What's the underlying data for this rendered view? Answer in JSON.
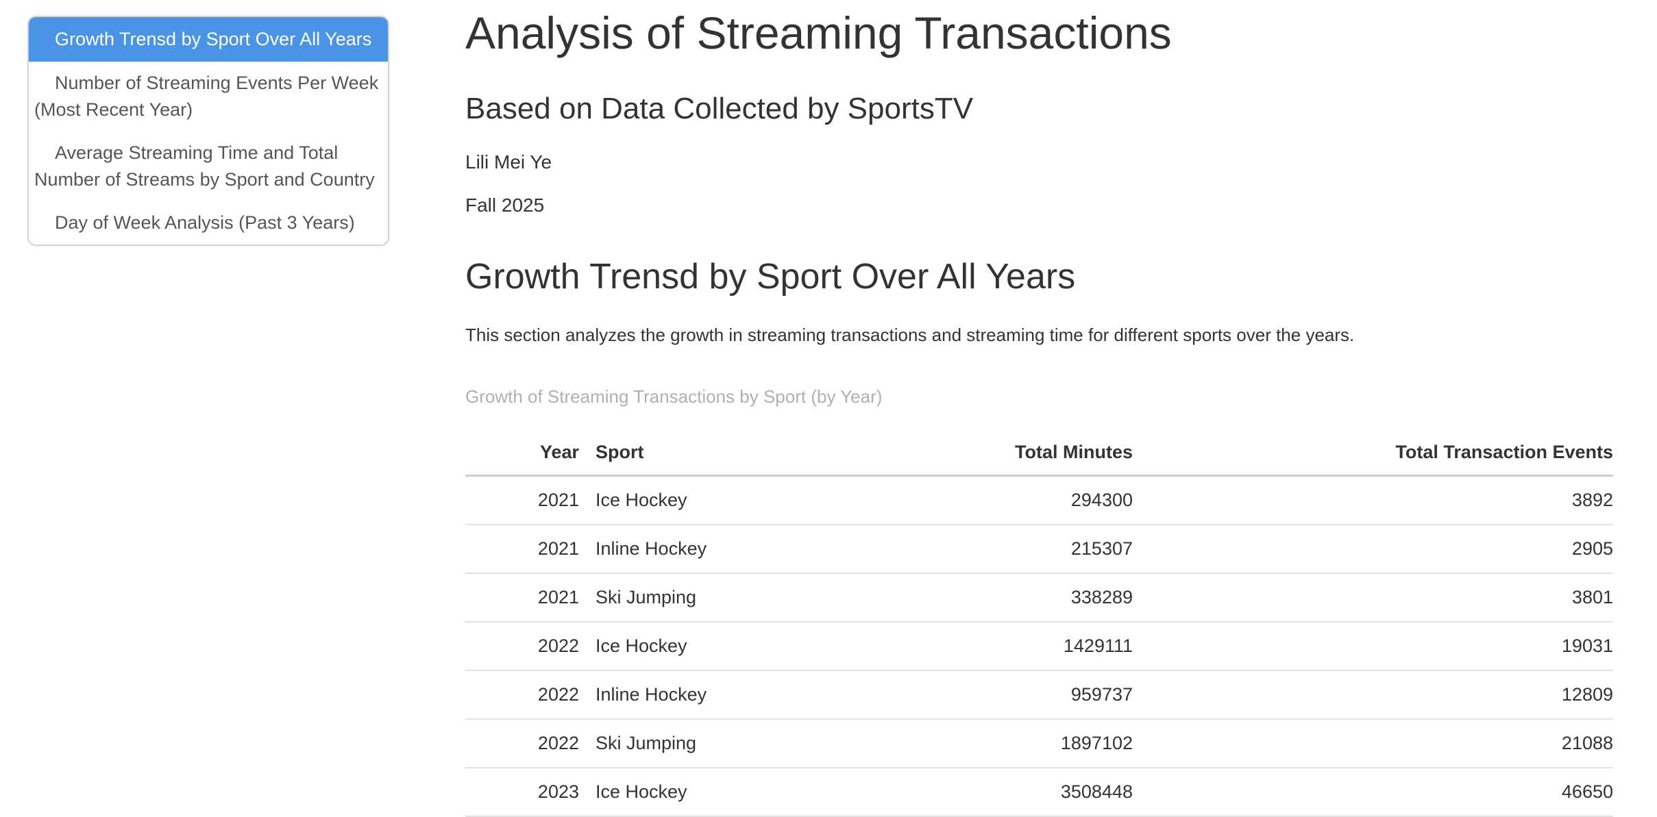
{
  "colors": {
    "toc_active_bg": "#4a94e8",
    "toc_active_text": "#ffffff",
    "toc_text": "#555555",
    "body_text": "#333333",
    "caption_text": "#b0b0b0",
    "row_border": "#e2e2e2"
  },
  "toc": {
    "items": [
      {
        "label": "Growth Trensd by Sport Over All Years",
        "active": true
      },
      {
        "label": "Number of Streaming Events Per Week (Most Recent Year)",
        "active": false
      },
      {
        "label": "Average Streaming Time and Total Number of Streams by Sport and Country",
        "active": false
      },
      {
        "label": "Day of Week Analysis (Past 3 Years)",
        "active": false
      }
    ]
  },
  "header": {
    "title": "Analysis of Streaming Transactions",
    "subtitle": "Based on Data Collected by SportsTV",
    "author": "Lili Mei Ye",
    "date": "Fall 2025"
  },
  "section": {
    "heading": "Growth Trensd by Sport Over All Years",
    "description": "This section analyzes the growth in streaming transactions and streaming time for different sports over the years."
  },
  "table": {
    "caption": "Growth of Streaming Transactions by Sport (by Year)",
    "columns": [
      "Year",
      "Sport",
      "Total Minutes",
      "Total Transaction Events"
    ],
    "rows": [
      [
        "2021",
        "Ice Hockey",
        "294300",
        "3892"
      ],
      [
        "2021",
        "Inline Hockey",
        "215307",
        "2905"
      ],
      [
        "2021",
        "Ski Jumping",
        "338289",
        "3801"
      ],
      [
        "2022",
        "Ice Hockey",
        "1429111",
        "19031"
      ],
      [
        "2022",
        "Inline Hockey",
        "959737",
        "12809"
      ],
      [
        "2022",
        "Ski Jumping",
        "1897102",
        "21088"
      ],
      [
        "2023",
        "Ice Hockey",
        "3508448",
        "46650"
      ]
    ]
  }
}
